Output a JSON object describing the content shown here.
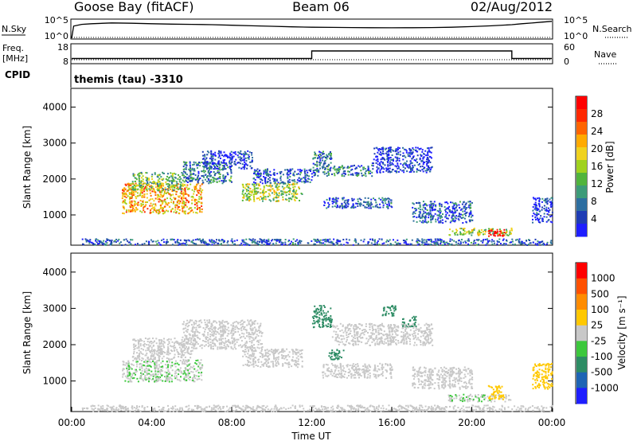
{
  "header": {
    "station": "Goose Bay (fitACF)",
    "beam": "Beam 06",
    "date": "02/Aug/2012"
  },
  "noise_panel": {
    "left_label": "N.Sky",
    "left_ticks": [
      "10^5",
      "10^0"
    ],
    "right_ticks": [
      "10^5",
      "10^0"
    ],
    "right_label": "N.Search"
  },
  "freq_panel": {
    "left_label_1": "Freq.",
    "left_label_2": "[MHz]",
    "left_ticks": [
      "18",
      "8"
    ],
    "right_ticks": [
      "60",
      "0"
    ],
    "right_label": "Nave"
  },
  "cpid_panel": {
    "label": "CPID",
    "text": "themis (tau) -3310"
  },
  "x_axis": {
    "label": "Time UT",
    "ticks": [
      "00:00",
      "04:00",
      "08:00",
      "12:00",
      "16:00",
      "20:00",
      "00:00"
    ]
  },
  "chart_data": [
    {
      "type": "line",
      "name": "noise",
      "y_scale": "log",
      "ylim_left": [
        1,
        100000
      ],
      "x_hours": [
        0.0,
        0.1,
        0.5,
        1.0,
        2.0,
        3.0,
        4.0,
        5.0,
        6.0,
        7.0,
        8.0,
        9.0,
        10.0,
        11.0,
        12.0,
        13.0,
        14.0,
        15.0,
        16.0,
        17.0,
        18.0,
        19.0,
        20.0,
        21.0,
        22.0,
        22.5,
        23.0,
        23.5,
        24.0
      ],
      "sky": [
        1,
        2000,
        6000,
        9000,
        15000,
        12000,
        9000,
        7000,
        6000,
        5000,
        3500,
        2500,
        1800,
        1300,
        1000,
        900,
        800,
        750,
        700,
        750,
        800,
        1000,
        1500,
        2500,
        5000,
        9000,
        14000,
        25000,
        40000
      ],
      "search_line": "dotted"
    },
    {
      "type": "line",
      "name": "frequency",
      "ylim_left": [
        8,
        18
      ],
      "ylim_right": [
        0,
        60
      ],
      "freq_steps": [
        {
          "from": 0,
          "to": 12,
          "value": 10.5
        },
        {
          "from": 12,
          "to": 22,
          "value": 14.8
        },
        {
          "from": 22,
          "to": 24,
          "value": 10.5
        }
      ],
      "nave_value": 8
    },
    {
      "type": "heatmap",
      "name": "power",
      "quantity": "Power [dB]",
      "ylabel": "Slant Range [km]",
      "xlim_hours": [
        0,
        24
      ],
      "ylim_km": [
        180,
        4500
      ],
      "y_ticks": [
        1000,
        2000,
        3000,
        4000
      ],
      "colorbar": {
        "label": "Power [dB]",
        "ticks": [
          "28",
          "24",
          "20",
          "16",
          "12",
          "8",
          "4"
        ],
        "colors": [
          "#1e1eff",
          "#1e3cb4",
          "#2d6ea0",
          "#3c9b78",
          "#50b43c",
          "#a0d21e",
          "#f0d21e",
          "#ffaa00",
          "#ff6400",
          "#ff2800",
          "#ff0000"
        ]
      },
      "blobs": [
        {
          "t0": 2.5,
          "t1": 6.5,
          "r0": 1050,
          "r1": 1900,
          "value": 20
        },
        {
          "t0": 3.0,
          "t1": 5.5,
          "r0": 1700,
          "r1": 2200,
          "value": 14
        },
        {
          "t0": 5.5,
          "t1": 8.0,
          "r0": 1900,
          "r1": 2500,
          "value": 10
        },
        {
          "t0": 6.5,
          "t1": 9.0,
          "r0": 2300,
          "r1": 2800,
          "value": 6
        },
        {
          "t0": 8.5,
          "t1": 11.5,
          "r0": 1400,
          "r1": 1900,
          "value": 16
        },
        {
          "t0": 9.0,
          "t1": 12.0,
          "r0": 1900,
          "r1": 2300,
          "value": 8
        },
        {
          "t0": 12.0,
          "t1": 13.0,
          "r0": 2100,
          "r1": 2800,
          "value": 10
        },
        {
          "t0": 13.0,
          "t1": 15.0,
          "r0": 2100,
          "r1": 2400,
          "value": 10
        },
        {
          "t0": 15.0,
          "t1": 18.0,
          "r0": 2200,
          "r1": 2900,
          "value": 6
        },
        {
          "t0": 12.5,
          "t1": 16.0,
          "r0": 1200,
          "r1": 1500,
          "value": 8
        },
        {
          "t0": 17.0,
          "t1": 20.0,
          "r0": 800,
          "r1": 1400,
          "value": 8
        },
        {
          "t0": 18.8,
          "t1": 22.0,
          "r0": 450,
          "r1": 650,
          "value": 16
        },
        {
          "t0": 20.8,
          "t1": 21.6,
          "r0": 420,
          "r1": 620,
          "value": 28
        },
        {
          "t0": 23.0,
          "t1": 24.0,
          "r0": 800,
          "r1": 1500,
          "value": 6
        },
        {
          "t0": 0.5,
          "t1": 24.0,
          "r0": 180,
          "r1": 350,
          "value": 8
        }
      ]
    },
    {
      "type": "heatmap",
      "name": "velocity",
      "quantity": "Velocity [m s^-1]",
      "ylabel": "Slant Range [km]",
      "xlim_hours": [
        0,
        24
      ],
      "ylim_km": [
        180,
        4500
      ],
      "y_ticks": [
        1000,
        2000,
        3000,
        4000
      ],
      "colorbar": {
        "label": "Velocity [m s⁻¹]",
        "ticks": [
          "1000",
          "500",
          "100",
          "25",
          "-25",
          "-100",
          "-500",
          "-1000"
        ],
        "colors": [
          "#1e1eff",
          "#1e64b4",
          "#2d8c64",
          "#3cc83c",
          "#c8c8c8",
          "#ffc800",
          "#ff8c00",
          "#ff5000",
          "#ff0000"
        ]
      },
      "blobs": [
        {
          "t0": 2.5,
          "t1": 6.5,
          "r0": 1000,
          "r1": 1600,
          "value": -100
        },
        {
          "t0": 3.0,
          "t1": 6.0,
          "r0": 1600,
          "r1": 2200,
          "value": 0
        },
        {
          "t0": 5.5,
          "t1": 9.5,
          "r0": 1900,
          "r1": 2700,
          "value": 0
        },
        {
          "t0": 8.5,
          "t1": 11.5,
          "r0": 1400,
          "r1": 1900,
          "value": 0
        },
        {
          "t0": 12.0,
          "t1": 13.0,
          "r0": 2500,
          "r1": 3100,
          "value": -500
        },
        {
          "t0": 12.8,
          "t1": 13.6,
          "r0": 1600,
          "r1": 1900,
          "value": -500
        },
        {
          "t0": 15.5,
          "t1": 16.2,
          "r0": 2800,
          "r1": 3100,
          "value": -500
        },
        {
          "t0": 16.5,
          "t1": 17.2,
          "r0": 2500,
          "r1": 2800,
          "value": -500
        },
        {
          "t0": 13.0,
          "t1": 18.0,
          "r0": 2000,
          "r1": 2600,
          "value": 0
        },
        {
          "t0": 12.5,
          "t1": 16.0,
          "r0": 1100,
          "r1": 1500,
          "value": 0
        },
        {
          "t0": 17.0,
          "t1": 20.0,
          "r0": 800,
          "r1": 1400,
          "value": 50
        },
        {
          "t0": 18.8,
          "t1": 22.0,
          "r0": 450,
          "r1": 650,
          "value": -100
        },
        {
          "t0": 20.8,
          "t1": 21.6,
          "r0": 500,
          "r1": 900,
          "value": 200
        },
        {
          "t0": 23.0,
          "t1": 24.0,
          "r0": 800,
          "r1": 1500,
          "value": 300
        },
        {
          "t0": 0.5,
          "t1": 24.0,
          "r0": 180,
          "r1": 350,
          "value": 0
        }
      ]
    }
  ]
}
